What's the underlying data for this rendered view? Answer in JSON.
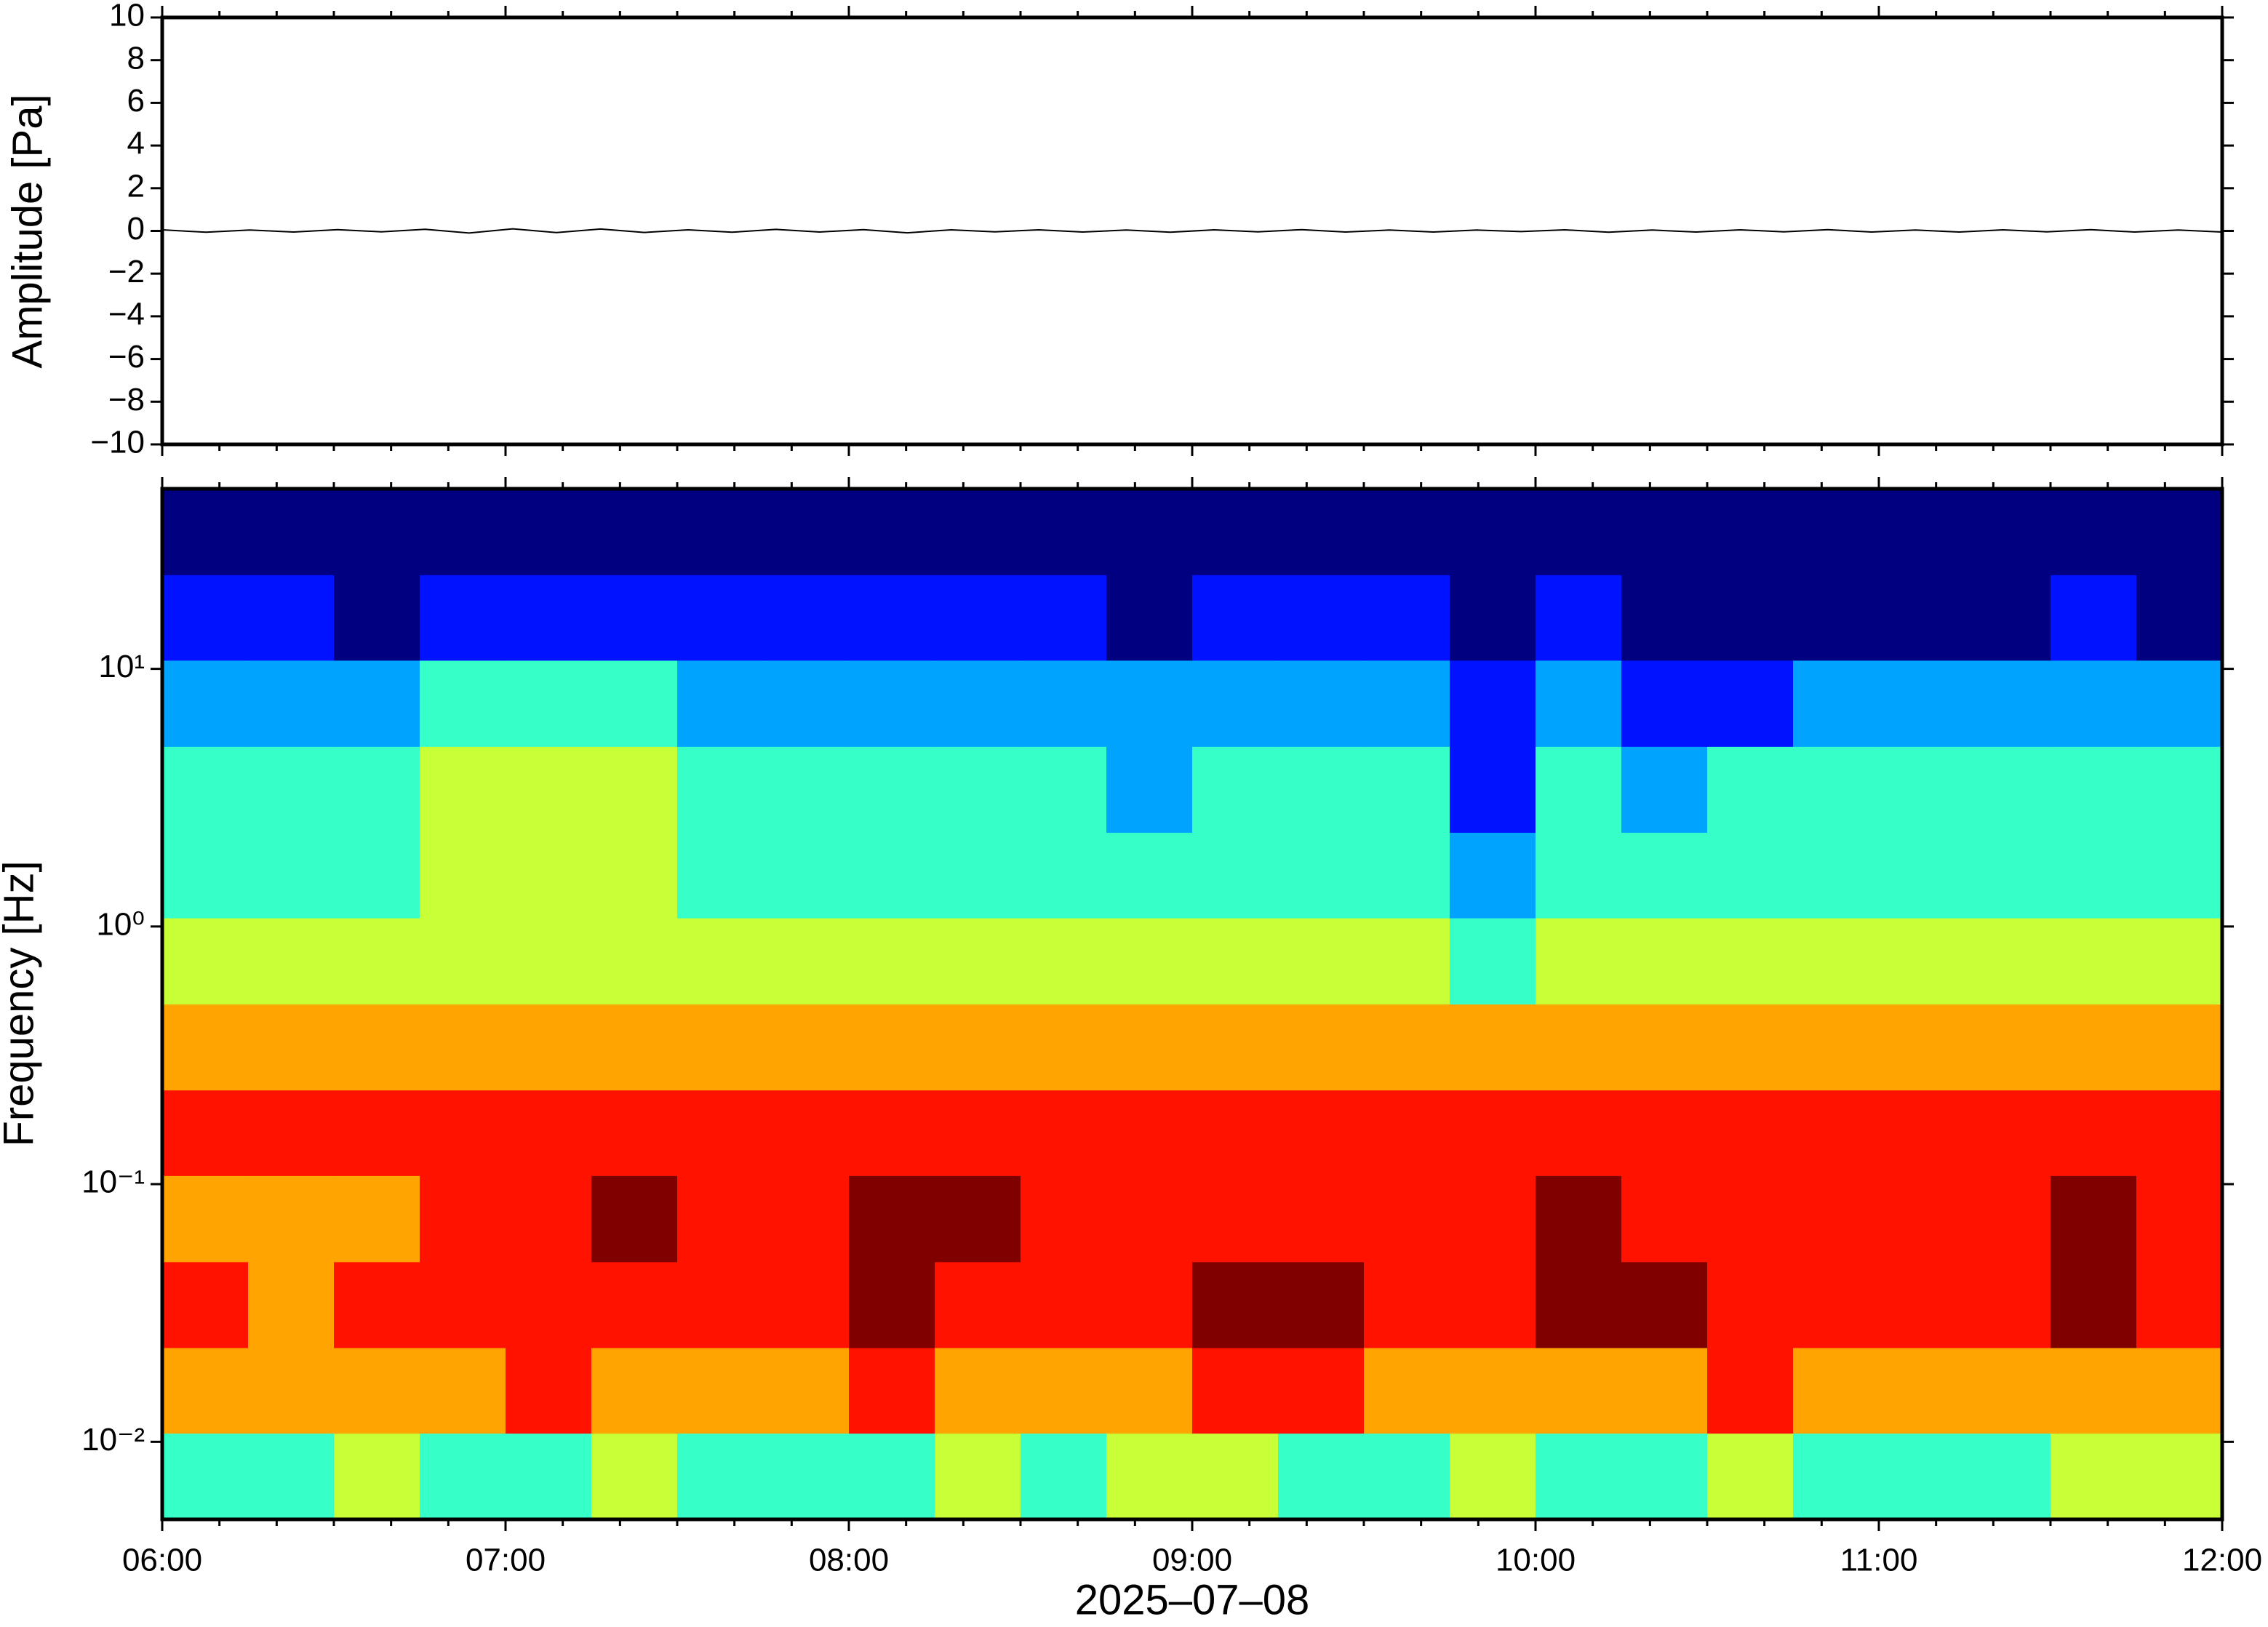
{
  "chart_data": [
    {
      "type": "line",
      "ylabel": "Amplitude [Pa]",
      "ylim": [
        -10,
        10
      ],
      "yticks": [
        {
          "value": 10,
          "label": "10"
        },
        {
          "value": 8,
          "label": "8"
        },
        {
          "value": 6,
          "label": "6"
        },
        {
          "value": 4,
          "label": "4"
        },
        {
          "value": 2,
          "label": "2"
        },
        {
          "value": 0,
          "label": "0"
        },
        {
          "value": -2,
          "label": "−2"
        },
        {
          "value": -4,
          "label": "−4"
        },
        {
          "value": -6,
          "label": "−6"
        },
        {
          "value": -8,
          "label": "−8"
        },
        {
          "value": -10,
          "label": "−10"
        }
      ],
      "series": [
        {
          "color": "#000000",
          "values": [
            0.05,
            -0.06,
            0.04,
            -0.05,
            0.06,
            -0.04,
            0.08,
            -0.1,
            0.1,
            -0.08,
            0.09,
            -0.07,
            0.05,
            -0.06,
            0.07,
            -0.05,
            0.06,
            -0.09,
            0.05,
            -0.04,
            0.05,
            -0.05,
            0.04,
            -0.06,
            0.05,
            -0.04,
            0.06,
            -0.05,
            0.04,
            -0.05,
            0.04,
            -0.03,
            0.05,
            -0.06,
            0.04,
            -0.05,
            0.05,
            -0.04,
            0.06,
            -0.05,
            0.04,
            -0.05,
            0.05,
            -0.04,
            0.06,
            -0.05,
            0.04,
            -0.05
          ]
        }
      ]
    },
    {
      "type": "heatmap",
      "ylabel": "Frequency [Hz]",
      "xlabel": "2025–07–08",
      "log_y": true,
      "colormap": "jet",
      "xticks": [
        "06:00",
        "07:00",
        "08:00",
        "09:00",
        "10:00",
        "11:00",
        "12:00"
      ],
      "ylim": [
        0.005,
        50
      ],
      "yticks": [
        {
          "value": 0.01,
          "label": "10⁻²"
        },
        {
          "value": 0.1,
          "label": "10⁻¹"
        },
        {
          "value": 1,
          "label": "10⁰"
        },
        {
          "value": 10,
          "label": "10¹"
        }
      ],
      "y_edges": [
        0.005,
        0.0108,
        0.0232,
        0.05,
        0.108,
        0.232,
        0.5,
        1.08,
        2.32,
        5,
        10.8,
        23.2,
        50
      ],
      "z": [
        [
          3,
          3,
          4,
          3,
          3,
          4,
          3,
          3,
          3,
          4,
          3,
          4,
          4,
          3,
          3,
          4,
          3,
          3,
          4,
          3,
          3,
          3,
          4,
          4
        ],
        [
          5,
          5,
          5,
          5,
          6,
          5,
          5,
          5,
          6,
          5,
          5,
          5,
          6,
          6,
          5,
          5,
          5,
          5,
          6,
          5,
          5,
          5,
          5,
          5
        ],
        [
          6,
          5,
          6,
          6,
          6,
          6,
          6,
          6,
          7,
          6,
          6,
          6,
          7,
          7,
          6,
          6,
          7,
          7,
          6,
          6,
          6,
          6,
          7,
          6
        ],
        [
          5,
          5,
          5,
          6,
          6,
          7,
          6,
          6,
          7,
          7,
          6,
          6,
          6,
          6,
          6,
          6,
          7,
          6,
          6,
          6,
          6,
          6,
          7,
          6
        ],
        [
          6,
          6,
          6,
          6,
          6,
          6,
          6,
          6,
          6,
          6,
          6,
          6,
          6,
          6,
          6,
          6,
          6,
          6,
          6,
          6,
          6,
          6,
          6,
          6
        ],
        [
          5,
          5,
          5,
          5,
          5,
          5,
          5,
          5,
          5,
          5,
          5,
          5,
          5,
          5,
          5,
          5,
          5,
          5,
          5,
          5,
          5,
          5,
          5,
          5
        ],
        [
          4,
          4,
          4,
          4,
          4,
          4,
          4,
          4,
          4,
          4,
          4,
          4,
          4,
          4,
          4,
          3,
          4,
          4,
          4,
          4,
          4,
          4,
          4,
          4
        ],
        [
          3,
          3,
          3,
          4,
          4,
          4,
          3,
          3,
          3,
          3,
          3,
          3,
          3,
          3,
          3,
          2,
          3,
          3,
          3,
          3,
          3,
          3,
          3,
          3
        ],
        [
          3,
          3,
          3,
          4,
          4,
          4,
          3,
          3,
          3,
          3,
          3,
          2,
          3,
          3,
          3,
          1,
          3,
          2,
          3,
          3,
          3,
          3,
          3,
          3
        ],
        [
          2,
          2,
          2,
          3,
          3,
          3,
          2,
          2,
          2,
          2,
          2,
          2,
          2,
          2,
          2,
          1,
          2,
          1,
          1,
          2,
          2,
          2,
          2,
          2
        ],
        [
          1,
          1,
          0,
          1,
          1,
          1,
          1,
          1,
          1,
          1,
          1,
          0,
          1,
          1,
          1,
          0,
          1,
          0,
          0,
          0,
          0,
          0,
          1,
          0
        ],
        [
          0,
          0,
          0,
          0,
          0,
          0,
          0,
          0,
          0,
          0,
          0,
          0,
          0,
          0,
          0,
          0,
          0,
          0,
          0,
          0,
          0,
          0,
          0,
          0
        ]
      ]
    }
  ]
}
